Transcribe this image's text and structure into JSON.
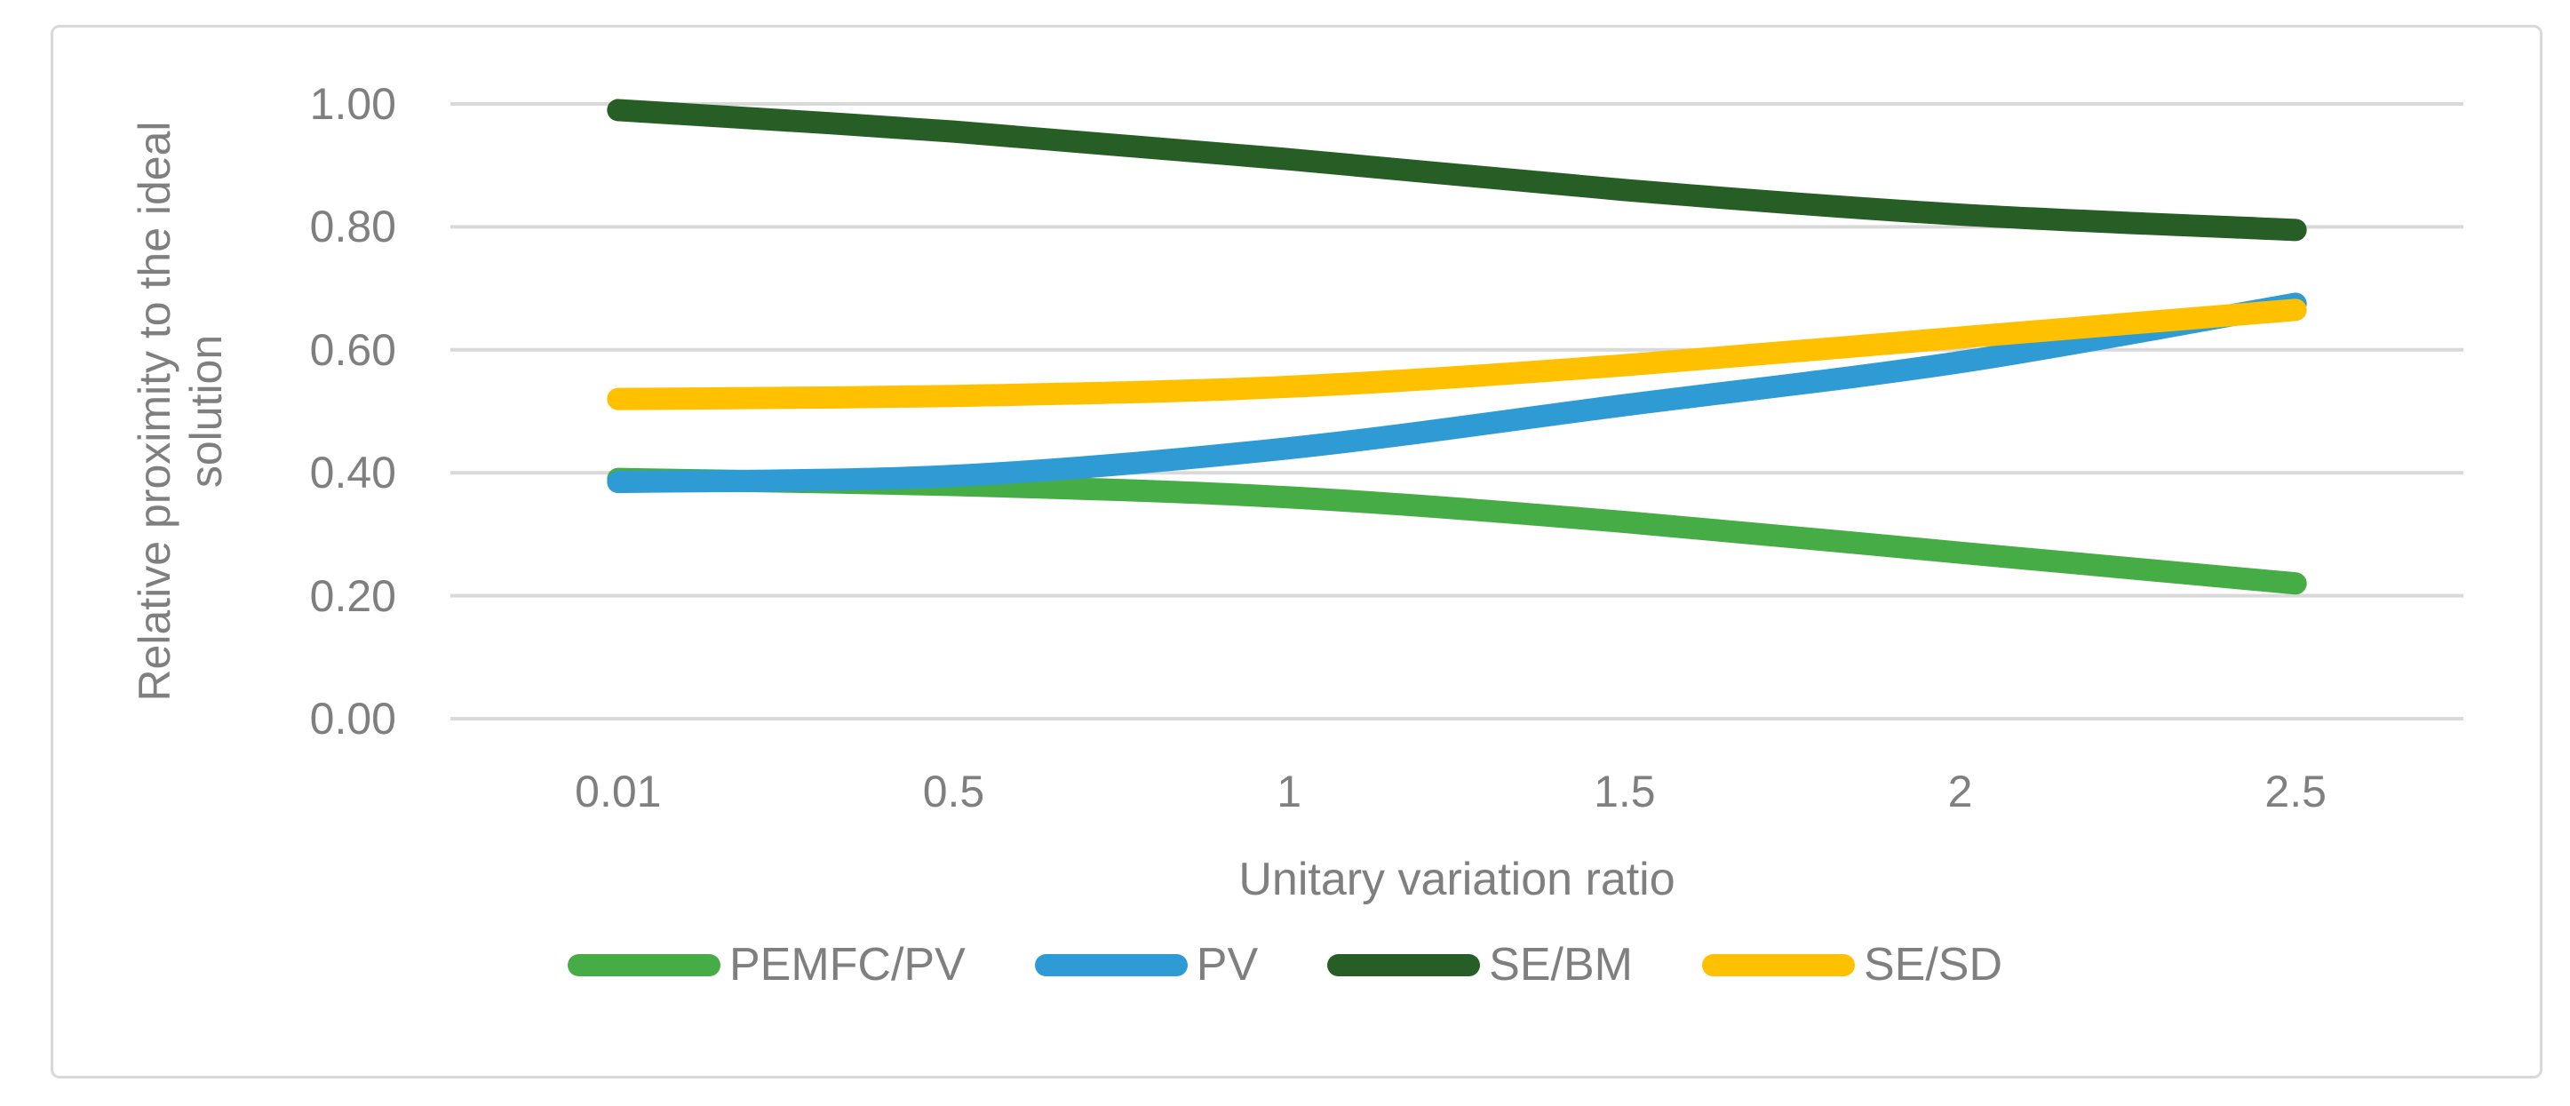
{
  "chart_data": {
    "type": "line",
    "title": "",
    "categories": [
      "0.01",
      "0.5",
      "1",
      "1.5",
      "2",
      "2.5"
    ],
    "series": [
      {
        "name": "PEMFC/PV",
        "color": "#46AC46",
        "values": [
          0.39,
          0.38,
          0.36,
          0.32,
          0.27,
          0.22
        ]
      },
      {
        "name": "PV",
        "color": "#2E9BD5",
        "values": [
          0.385,
          0.395,
          0.44,
          0.51,
          0.58,
          0.675
        ]
      },
      {
        "name": "SE/BM",
        "color": "#265E26",
        "values": [
          0.99,
          0.955,
          0.91,
          0.86,
          0.82,
          0.795
        ]
      },
      {
        "name": "SE/SD",
        "color": "#FFC000",
        "values": [
          0.52,
          0.525,
          0.54,
          0.575,
          0.62,
          0.665
        ]
      }
    ],
    "xlabel": "Unitary variation ratio",
    "ylabel": "Relative proximity to the ideal solution",
    "ylabel_lines": [
      "Relative proximity to the ideal",
      "solution"
    ],
    "y_ticks": [
      {
        "label": "1.00",
        "value": 1.0
      },
      {
        "label": "0.80",
        "value": 0.8
      },
      {
        "label": "0.60",
        "value": 0.6
      },
      {
        "label": "0.40",
        "value": 0.4
      },
      {
        "label": "0.20",
        "value": 0.2
      },
      {
        "label": "0.00",
        "value": 0.0
      }
    ],
    "ylim": [
      0,
      1
    ],
    "grid": "horizontal",
    "smoothed_lines": true,
    "legend_position": "bottom",
    "colors": {
      "gridline": "#D9D9D9",
      "frame": "#D9D9D9",
      "text": "#7F7F7F",
      "background": "#FFFFFF"
    }
  }
}
